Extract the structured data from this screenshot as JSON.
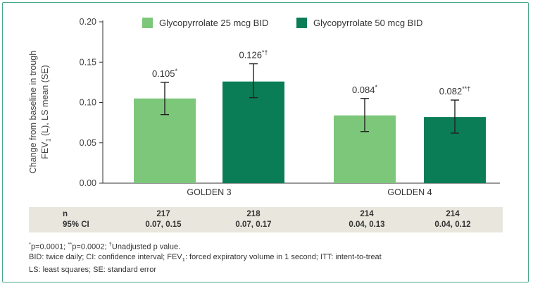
{
  "chart_data": {
    "type": "bar",
    "categories": [
      "GOLDEN 3",
      "GOLDEN 4"
    ],
    "series": [
      {
        "name": "Glycopyrrolate 25 mcg BID",
        "color": "#7cc77a",
        "values": [
          0.105,
          0.084
        ],
        "ci": [
          [
            0.085,
            0.125
          ],
          [
            0.064,
            0.105
          ]
        ],
        "labels": [
          {
            "value": "0.105",
            "marks": "*"
          },
          {
            "value": "0.084",
            "marks": "*"
          }
        ]
      },
      {
        "name": "Glycopyrrolate 50 mcg BID",
        "color": "#0b7d56",
        "values": [
          0.126,
          0.082
        ],
        "ci": [
          [
            0.106,
            0.148
          ],
          [
            0.062,
            0.103
          ]
        ],
        "labels": [
          {
            "value": "0.126",
            "marks": "*†"
          },
          {
            "value": "0.082",
            "marks": "**†"
          }
        ]
      }
    ],
    "ylim": [
      0,
      0.2
    ],
    "yticks": [
      "0.00",
      "0.05",
      "0.10",
      "0.15",
      "0.20"
    ],
    "ylabel": {
      "line1": "Change from baseline in trough",
      "line2_pre": "FEV",
      "line2_sub": "1",
      "line2_post": " (L), LS mean (SE)"
    },
    "legend_position": "top",
    "grid": false
  },
  "stats_table": {
    "n_label": "n",
    "ci_label": "95% CI",
    "columns": [
      {
        "n": "217",
        "ci": "0.07, 0.15"
      },
      {
        "n": "218",
        "ci": "0.07, 0.17"
      },
      {
        "n": "214",
        "ci": "0.04, 0.13"
      },
      {
        "n": "214",
        "ci": "0.04, 0.12"
      }
    ]
  },
  "footnotes": {
    "line1": {
      "m1": "*",
      "t1": "p=0.0001; ",
      "m2": "**",
      "t2": "p=0.0002; ",
      "m3": "†",
      "t3": "Unadjusted p value."
    },
    "line2": {
      "t1": "BID: twice daily; CI: confidence interval; FEV",
      "sub": "1",
      "t2": ": forced expiratory volume in 1 second; ITT: intent-to-treat"
    },
    "line3": "LS: least squares; SE: standard error"
  },
  "colors": {
    "frame": "#4aa884",
    "axis": "#333333",
    "stats_bg": "#e9e7dd"
  }
}
